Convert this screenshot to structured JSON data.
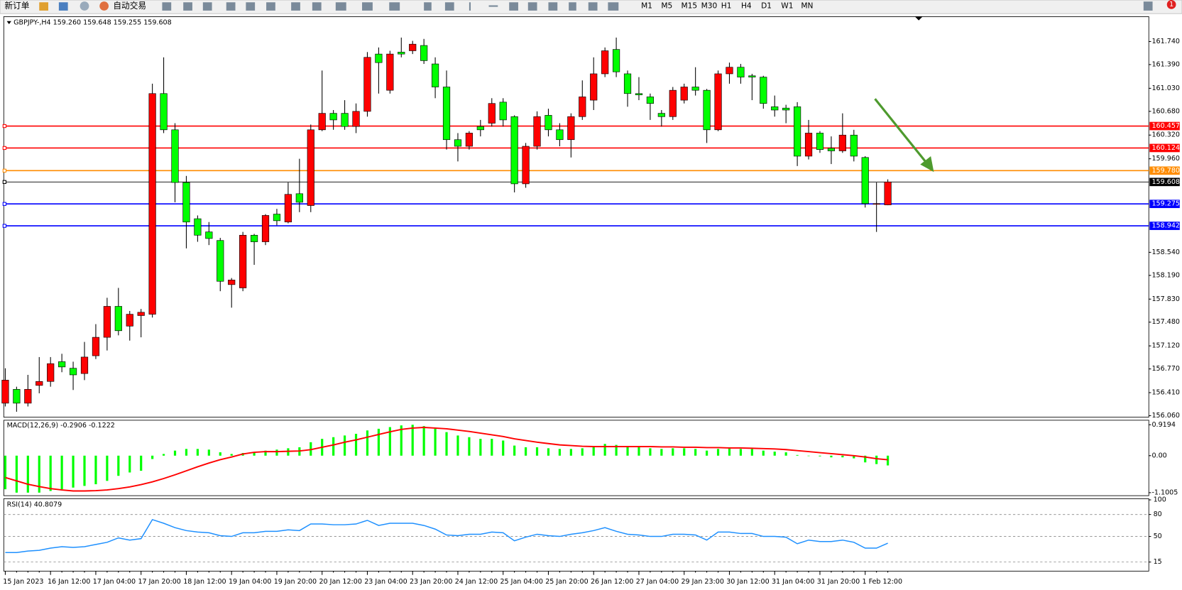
{
  "toolbar": {
    "new_order": "新订单",
    "auto_trading": "自动交易",
    "timeframes": [
      "M1",
      "M5",
      "M15",
      "M30",
      "H1",
      "H4",
      "D1",
      "W1",
      "MN"
    ],
    "badge": "1"
  },
  "chart_data": [
    {
      "type": "candlestick",
      "title": "GBPJPY-,H4 159.260 159.648 159.255 159.608",
      "categories": [
        "15 Jan 2023",
        null,
        null,
        null,
        "16 Jan 12:00",
        null,
        null,
        null,
        "17 Jan 04:00",
        null,
        null,
        null,
        "17 Jan 20:00",
        null,
        null,
        null,
        "18 Jan 12:00",
        null,
        null,
        null,
        "19 Jan 04:00",
        null,
        null,
        null,
        "19 Jan 20:00",
        null,
        null,
        null,
        "20 Jan 12:00",
        null,
        null,
        null,
        "23 Jan 04:00",
        null,
        null,
        null,
        "23 Jan 20:00",
        null,
        null,
        null,
        "24 Jan 12:00",
        null,
        null,
        null,
        "25 Jan 04:00",
        null,
        null,
        null,
        "25 Jan 20:00",
        null,
        null,
        null,
        "26 Jan 12:00",
        null,
        null,
        null,
        "27 Jan 04:00",
        null,
        null,
        null,
        "29 Jan 23:00",
        null,
        null,
        null,
        "30 Jan 12:00",
        null,
        null,
        null,
        "31 Jan 04:00",
        null,
        null,
        null,
        "31 Jan 20:00",
        null,
        null,
        null,
        "1 Feb 12:00",
        null,
        null
      ],
      "open": [
        156.25,
        156.46,
        156.25,
        156.52,
        156.58,
        156.88,
        156.78,
        156.7,
        156.97,
        157.25,
        157.72,
        157.42,
        157.58,
        157.6,
        160.95,
        160.4,
        159.6,
        159.05,
        158.85,
        158.72,
        158.05,
        158.0,
        158.8,
        158.7,
        159.12,
        159.0,
        159.43,
        159.25,
        160.4,
        160.65,
        160.65,
        160.45,
        160.68,
        161.55,
        161.0,
        161.58,
        161.6,
        161.68,
        161.4,
        161.05,
        160.25,
        160.15,
        160.45,
        160.5,
        160.82,
        160.6,
        159.58,
        160.15,
        160.62,
        160.4,
        160.25,
        160.6,
        160.85,
        161.25,
        161.62,
        161.25,
        160.95,
        160.9,
        160.65,
        160.6,
        160.85,
        161.05,
        161.0,
        160.4,
        161.25,
        161.35,
        161.22,
        161.2,
        160.75,
        160.73,
        160.75,
        160.0,
        160.35,
        160.12,
        160.08,
        160.32,
        159.98,
        159.28,
        159.26
      ],
      "high": [
        156.78,
        156.5,
        156.68,
        156.95,
        156.95,
        157.0,
        156.88,
        157.18,
        157.45,
        157.85,
        158.0,
        157.65,
        157.68,
        161.1,
        161.5,
        160.5,
        159.7,
        159.1,
        159.0,
        158.76,
        158.15,
        158.85,
        158.82,
        159.12,
        159.2,
        159.6,
        159.96,
        160.48,
        161.3,
        160.7,
        160.85,
        160.8,
        161.58,
        161.65,
        161.6,
        161.8,
        161.75,
        161.78,
        161.5,
        161.3,
        160.35,
        160.38,
        160.55,
        160.88,
        160.88,
        160.62,
        160.2,
        160.68,
        160.72,
        160.5,
        160.65,
        161.15,
        161.5,
        161.65,
        161.8,
        161.3,
        161.2,
        160.95,
        160.7,
        161.05,
        161.1,
        161.35,
        161.02,
        161.3,
        161.42,
        161.4,
        161.25,
        161.22,
        160.92,
        160.78,
        160.82,
        160.55,
        160.38,
        160.3,
        160.65,
        160.4,
        160.0,
        159.6,
        159.648
      ],
      "low": [
        156.2,
        156.12,
        156.2,
        156.4,
        156.5,
        156.72,
        156.45,
        156.6,
        156.92,
        157.05,
        157.28,
        157.2,
        157.25,
        157.55,
        160.35,
        159.3,
        158.6,
        158.7,
        158.65,
        157.95,
        157.7,
        157.95,
        158.35,
        158.65,
        158.95,
        158.98,
        159.15,
        159.15,
        160.38,
        160.4,
        160.4,
        160.35,
        160.6,
        160.95,
        160.95,
        161.5,
        161.55,
        161.4,
        160.88,
        160.1,
        159.92,
        160.1,
        160.3,
        160.45,
        160.45,
        159.45,
        159.52,
        160.1,
        160.3,
        160.15,
        159.98,
        160.55,
        160.7,
        161.2,
        161.2,
        160.75,
        160.85,
        160.55,
        160.45,
        160.55,
        160.8,
        160.92,
        160.2,
        160.38,
        161.1,
        161.1,
        160.85,
        160.72,
        160.6,
        160.5,
        159.85,
        159.95,
        160.05,
        159.88,
        160.05,
        159.92,
        159.22,
        158.85,
        159.255
      ],
      "close": [
        156.6,
        156.25,
        156.46,
        156.58,
        156.85,
        156.8,
        156.68,
        156.95,
        157.25,
        157.72,
        157.35,
        157.6,
        157.63,
        160.95,
        160.4,
        159.6,
        159.0,
        158.8,
        158.75,
        158.1,
        158.12,
        158.8,
        158.7,
        159.1,
        159.02,
        159.42,
        159.3,
        160.4,
        160.65,
        160.55,
        160.45,
        160.68,
        161.5,
        161.42,
        161.55,
        161.55,
        161.7,
        161.45,
        161.05,
        160.25,
        160.15,
        160.35,
        160.4,
        160.8,
        160.55,
        159.58,
        160.15,
        160.6,
        160.4,
        160.25,
        160.6,
        160.9,
        161.25,
        161.6,
        161.28,
        160.95,
        160.93,
        160.8,
        160.6,
        161.0,
        161.05,
        161.0,
        160.4,
        161.25,
        161.35,
        161.2,
        161.2,
        160.8,
        160.7,
        160.7,
        160.0,
        160.35,
        160.1,
        160.08,
        160.32,
        160.0,
        159.28,
        159.28,
        159.608
      ],
      "up_color": "#ff0000",
      "down_color": "#00ff00",
      "ylim": [
        156.037,
        162.118
      ],
      "yticks": [
        {
          "value": 161.74,
          "label": "161.740"
        },
        {
          "value": 161.39,
          "label": "161.390"
        },
        {
          "value": 161.03,
          "label": "161.030"
        },
        {
          "value": 160.68,
          "label": "160.680"
        },
        {
          "value": 160.32,
          "label": "160.320"
        },
        {
          "value": 159.96,
          "label": "159.960"
        },
        {
          "value": 158.54,
          "label": "158.540"
        },
        {
          "value": 158.19,
          "label": "158.190"
        },
        {
          "value": 157.83,
          "label": "157.830"
        },
        {
          "value": 157.48,
          "label": "157.480"
        },
        {
          "value": 157.12,
          "label": "157.120"
        },
        {
          "value": 156.77,
          "label": "156.770"
        },
        {
          "value": 156.41,
          "label": "156.410"
        },
        {
          "value": 156.06,
          "label": "156.060"
        }
      ],
      "levels": [
        {
          "value": 160.457,
          "color": "#ff0000"
        },
        {
          "value": 160.124,
          "color": "#ff0000"
        },
        {
          "value": 159.78,
          "label": "159.780",
          "color": "#ff8c00"
        },
        {
          "value": 159.608,
          "color": "#000000"
        },
        {
          "value": 159.275,
          "color": "#0000ff"
        },
        {
          "value": 158.942,
          "color": "#0000ff"
        }
      ]
    },
    {
      "type": "macd",
      "title": "MACD(12,26,9) -0.2906 -0.1222",
      "histogram": {
        "color": "#00ff00",
        "values": [
          -1.0,
          -1.1,
          -1.1,
          -1.1,
          -1.05,
          -1.0,
          -0.95,
          -0.9,
          -0.85,
          -0.75,
          -0.6,
          -0.5,
          -0.45,
          -0.1,
          0.05,
          0.15,
          0.2,
          0.2,
          0.18,
          0.1,
          0.05,
          0.08,
          0.1,
          0.15,
          0.18,
          0.22,
          0.25,
          0.4,
          0.5,
          0.55,
          0.6,
          0.65,
          0.75,
          0.8,
          0.85,
          0.9,
          0.92,
          0.88,
          0.8,
          0.7,
          0.6,
          0.55,
          0.5,
          0.5,
          0.45,
          0.3,
          0.25,
          0.25,
          0.22,
          0.2,
          0.2,
          0.22,
          0.28,
          0.35,
          0.32,
          0.28,
          0.25,
          0.22,
          0.2,
          0.22,
          0.22,
          0.2,
          0.15,
          0.2,
          0.22,
          0.2,
          0.2,
          0.15,
          0.12,
          0.1,
          0.02,
          0.0,
          -0.02,
          -0.05,
          -0.05,
          -0.08,
          -0.2,
          -0.25,
          -0.2906
        ]
      },
      "signal": {
        "color": "#ff0000",
        "values": [
          -0.65,
          -0.75,
          -0.85,
          -0.92,
          -0.98,
          -1.02,
          -1.05,
          -1.05,
          -1.04,
          -1.02,
          -0.98,
          -0.93,
          -0.86,
          -0.78,
          -0.68,
          -0.57,
          -0.45,
          -0.33,
          -0.22,
          -0.12,
          -0.04,
          0.05,
          0.1,
          0.12,
          0.12,
          0.13,
          0.14,
          0.18,
          0.25,
          0.32,
          0.4,
          0.47,
          0.55,
          0.63,
          0.71,
          0.78,
          0.82,
          0.84,
          0.82,
          0.8,
          0.76,
          0.72,
          0.67,
          0.62,
          0.57,
          0.5,
          0.45,
          0.4,
          0.36,
          0.32,
          0.3,
          0.28,
          0.27,
          0.27,
          0.27,
          0.27,
          0.27,
          0.27,
          0.26,
          0.26,
          0.25,
          0.25,
          0.24,
          0.24,
          0.23,
          0.23,
          0.22,
          0.21,
          0.2,
          0.18,
          0.15,
          0.12,
          0.09,
          0.06,
          0.03,
          0.0,
          -0.04,
          -0.09,
          -0.1222
        ]
      },
      "ylim": [
        -1.19,
        1.054
      ],
      "yticks": [
        0.9194,
        {
          "value": 0,
          "label": "0.00"
        },
        -1.1005
      ]
    },
    {
      "type": "rsi",
      "title": "RSI(14) 40.8079",
      "color": "#1e90ff",
      "values": [
        28,
        28,
        30,
        31,
        34,
        36,
        35,
        36,
        39,
        42,
        48,
        45,
        47,
        73,
        68,
        62,
        58,
        56,
        55,
        51,
        50,
        55,
        55,
        57,
        57,
        59,
        58,
        67,
        67,
        66,
        66,
        67,
        72,
        65,
        68,
        68,
        68,
        65,
        60,
        52,
        51,
        53,
        53,
        56,
        55,
        44,
        49,
        53,
        51,
        50,
        53,
        55,
        58,
        62,
        57,
        53,
        52,
        50,
        50,
        53,
        53,
        52,
        45,
        56,
        56,
        54,
        54,
        50,
        50,
        49,
        40,
        45,
        43,
        43,
        45,
        42,
        34,
        34,
        40.8079
      ],
      "ylim": [
        2.6,
        101.6
      ],
      "yticks": [
        100,
        80,
        50,
        15
      ],
      "levels": [
        80,
        50,
        15
      ]
    }
  ]
}
